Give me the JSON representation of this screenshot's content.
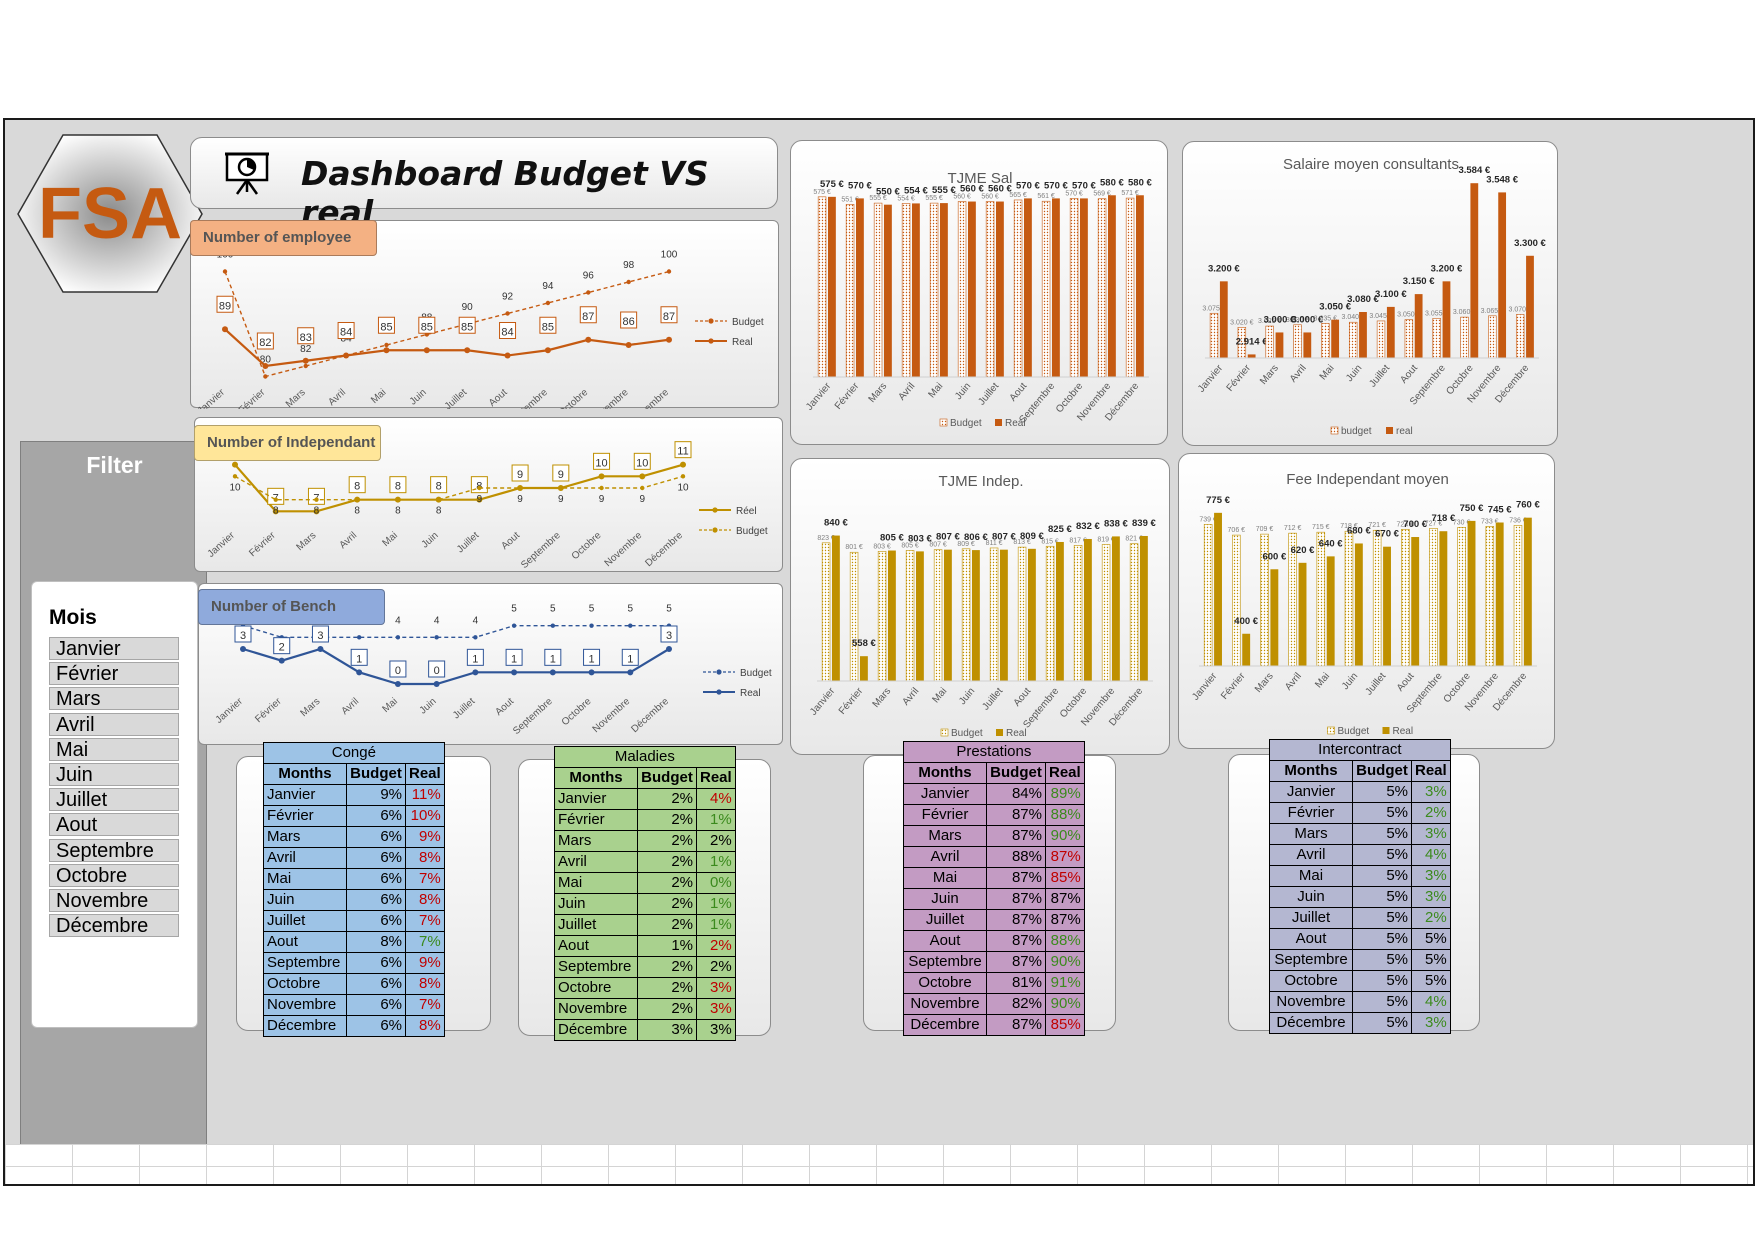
{
  "header": {
    "title": "Dashboard Budget VS real",
    "logo_text": "FSA",
    "title_icon": "presentation-icon"
  },
  "filter": {
    "title": "Filter",
    "slicer_label": "Mois",
    "months": [
      "Janvier",
      "Février",
      "Mars",
      "Avril",
      "Mai",
      "Juin",
      "Juillet",
      "Aout",
      "Septembre",
      "Octobre",
      "Novembre",
      "Décembre"
    ]
  },
  "colors": {
    "employee": "#c55a11",
    "independant": "#bf9000",
    "bench": "#2f5597",
    "tjme_sal": "#c55a11",
    "tjme_indep": "#bf9000"
  },
  "chart_data": [
    {
      "id": "employees",
      "type": "line",
      "title": "Number of employee",
      "categories": [
        "Janvier",
        "Février",
        "Mars",
        "Avril",
        "Mai",
        "Juin",
        "Juillet",
        "Aout",
        "Septembre",
        "Octobre",
        "Novembre",
        "Décembre"
      ],
      "series": [
        {
          "name": "Budget",
          "values": [
            100,
            80,
            82,
            84,
            86,
            88,
            90,
            92,
            94,
            96,
            98,
            100
          ],
          "style": "dashed"
        },
        {
          "name": "Real",
          "values": [
            89,
            82,
            83,
            84,
            85,
            85,
            85,
            84,
            85,
            87,
            86,
            87
          ],
          "style": "solid"
        }
      ],
      "legend": "right"
    },
    {
      "id": "independants",
      "type": "line",
      "title": "Number of Independant",
      "categories": [
        "Janvier",
        "Février",
        "Mars",
        "Avril",
        "Mai",
        "Juin",
        "Juillet",
        "Aout",
        "Septembre",
        "Octobre",
        "Novembre",
        "Décembre"
      ],
      "series": [
        {
          "name": "Réel",
          "values": [
            11,
            7,
            7,
            8,
            8,
            8,
            8,
            9,
            9,
            10,
            10,
            11
          ],
          "style": "solid"
        },
        {
          "name": "Budget",
          "values": [
            10,
            8,
            8,
            8,
            8,
            8,
            9,
            9,
            9,
            9,
            9,
            10
          ],
          "style": "dashed"
        }
      ],
      "legend": "right"
    },
    {
      "id": "bench",
      "type": "line",
      "title": "Number of Bench",
      "categories": [
        "Janvier",
        "Février",
        "Mars",
        "Avril",
        "Mai",
        "Juin",
        "Juillet",
        "Aout",
        "Septembre",
        "Octobre",
        "Novembre",
        "Décembre"
      ],
      "series": [
        {
          "name": "Budget",
          "values": [
            5,
            4,
            4,
            4,
            4,
            4,
            4,
            5,
            5,
            5,
            5,
            5
          ],
          "style": "dashed"
        },
        {
          "name": "Real",
          "values": [
            3,
            2,
            3,
            1,
            0,
            0,
            1,
            1,
            1,
            1,
            1,
            3
          ],
          "style": "solid"
        }
      ],
      "legend": "right"
    },
    {
      "id": "tjme_sal",
      "type": "bar",
      "title": "TJME Sal",
      "categories": [
        "Janvier",
        "Février",
        "Mars",
        "Avril",
        "Mai",
        "Juin",
        "Juillet",
        "Aout",
        "Septembre",
        "Octobre",
        "Novembre",
        "Décembre"
      ],
      "series": [
        {
          "name": "Budget",
          "values": [
            575,
            551,
            555,
            554,
            555,
            560,
            560,
            565,
            561,
            570,
            569,
            571
          ],
          "labels": [
            "575 €",
            "551 €",
            "555 €",
            "554 €",
            "555 €",
            "560 €",
            "560 €",
            "565 €",
            "561 €",
            "570 €",
            "569 €",
            "571 €"
          ]
        },
        {
          "name": "Real",
          "values": [
            575,
            570,
            550,
            554,
            555,
            560,
            560,
            570,
            570,
            570,
            580,
            580
          ],
          "labels": [
            "575 €",
            "570 €",
            "550 €",
            "554 €",
            "555 €",
            "560 €",
            "560 €",
            "570 €",
            "570 €",
            "570 €",
            "580 €",
            "580 €"
          ]
        }
      ],
      "legend": "bottom"
    },
    {
      "id": "salaire",
      "type": "bar",
      "title": "Salaire moyen consultants",
      "categories": [
        "Janvier",
        "Février",
        "Mars",
        "Avril",
        "Mai",
        "Juin",
        "Juillet",
        "Aout",
        "Septembre",
        "Octobre",
        "Novembre",
        "Décembre"
      ],
      "series": [
        {
          "name": "budget",
          "values": [
            3075,
            3020,
            3025,
            3030,
            3035,
            3040,
            3045,
            3050,
            3055,
            3060,
            3065,
            3070
          ],
          "labels": [
            "3.075 €",
            "3.020 €",
            "3.025 €",
            "3.030 €",
            "3.035 €",
            "3.040 €",
            "3.045 €",
            "3.050 €",
            "3.055 €",
            "3.060 €",
            "3.065 €",
            "3.070 €"
          ]
        },
        {
          "name": "real",
          "values": [
            3200,
            2914,
            3000,
            3000,
            3050,
            3080,
            3100,
            3150,
            3200,
            3584,
            3548,
            3300
          ],
          "labels": [
            "3.200 €",
            "2.914 €",
            "3.000 €",
            "3.000 €",
            "3.050 €",
            "3.080 €",
            "3.100 €",
            "3.150 €",
            "3.200 €",
            "3.584 €",
            "3.548 €",
            "3.300 €"
          ]
        }
      ],
      "legend": "bottom"
    },
    {
      "id": "tjme_indep",
      "type": "bar",
      "title": "TJME Indep.",
      "categories": [
        "Janvier",
        "Février",
        "Mars",
        "Avril",
        "Mai",
        "Juin",
        "Juillet",
        "Aout",
        "Septembre",
        "Octobre",
        "Novembre",
        "Décembre"
      ],
      "series": [
        {
          "name": "Budget",
          "values": [
            823,
            801,
            803,
            805,
            807,
            809,
            811,
            813,
            815,
            817,
            819,
            821
          ],
          "labels": [
            "823 €",
            "801 €",
            "803 €",
            "805 €",
            "807 €",
            "809 €",
            "811 €",
            "813 €",
            "815 €",
            "817 €",
            "819 €",
            "821 €"
          ]
        },
        {
          "name": "Real",
          "values": [
            840,
            558,
            805,
            803,
            807,
            806,
            807,
            809,
            825,
            832,
            838,
            839
          ],
          "labels": [
            "840 €",
            "558 €",
            "805 €",
            "803 €",
            "807 €",
            "806 €",
            "807 €",
            "809 €",
            "825 €",
            "832 €",
            "838 €",
            "839 €"
          ]
        }
      ],
      "legend": "bottom"
    },
    {
      "id": "fee",
      "type": "bar",
      "title": "Fee Independant moyen",
      "categories": [
        "Janvier",
        "Février",
        "Mars",
        "Avril",
        "Mai",
        "Juin",
        "Juillet",
        "Aout",
        "Septembre",
        "Octobre",
        "Novembre",
        "Décembre"
      ],
      "series": [
        {
          "name": "Budget",
          "values": [
            739,
            706,
            709,
            712,
            715,
            718,
            721,
            724,
            727,
            730,
            733,
            736
          ],
          "labels": [
            "739 €",
            "706 €",
            "709 €",
            "712 €",
            "715 €",
            "718 €",
            "721 €",
            "724 €",
            "727 €",
            "730 €",
            "733 €",
            "736 €"
          ]
        },
        {
          "name": "Real",
          "values": [
            775,
            400,
            600,
            620,
            640,
            680,
            670,
            700,
            718,
            750,
            745,
            760
          ],
          "labels": [
            "775 €",
            "400 €",
            "600 €",
            "620 €",
            "640 €",
            "680 €",
            "670 €",
            "700 €",
            "718 €",
            "750 €",
            "745 €",
            "760 €"
          ]
        }
      ],
      "legend": "bottom"
    }
  ],
  "tables": [
    {
      "id": "conge",
      "caption": "Congé",
      "headers": [
        "Months",
        "Budget",
        "Real"
      ],
      "color": "#9dc3e6",
      "rows": [
        [
          "Janvier",
          "9%",
          "11%",
          "red"
        ],
        [
          "Février",
          "6%",
          "10%",
          "red"
        ],
        [
          "Mars",
          "6%",
          "9%",
          "red"
        ],
        [
          "Avril",
          "6%",
          "8%",
          "red"
        ],
        [
          "Mai",
          "6%",
          "7%",
          "red"
        ],
        [
          "Juin",
          "6%",
          "8%",
          "red"
        ],
        [
          "Juillet",
          "6%",
          "7%",
          "red"
        ],
        [
          "Aout",
          "8%",
          "7%",
          "green"
        ],
        [
          "Septembre",
          "6%",
          "9%",
          "red"
        ],
        [
          "Octobre",
          "6%",
          "8%",
          "red"
        ],
        [
          "Novembre",
          "6%",
          "7%",
          "red"
        ],
        [
          "Décembre",
          "6%",
          "8%",
          "red"
        ]
      ]
    },
    {
      "id": "maladies",
      "caption": "Maladies",
      "headers": [
        "Months",
        "Budget",
        "Real"
      ],
      "color": "#a9d18e",
      "rows": [
        [
          "Janvier",
          "2%",
          "4%",
          "red"
        ],
        [
          "Février",
          "2%",
          "1%",
          "green"
        ],
        [
          "Mars",
          "2%",
          "2%",
          "black"
        ],
        [
          "Avril",
          "2%",
          "1%",
          "green"
        ],
        [
          "Mai",
          "2%",
          "0%",
          "green"
        ],
        [
          "Juin",
          "2%",
          "1%",
          "green"
        ],
        [
          "Juillet",
          "2%",
          "1%",
          "green"
        ],
        [
          "Aout",
          "1%",
          "2%",
          "red"
        ],
        [
          "Septembre",
          "2%",
          "2%",
          "black"
        ],
        [
          "Octobre",
          "2%",
          "3%",
          "red"
        ],
        [
          "Novembre",
          "2%",
          "3%",
          "red"
        ],
        [
          "Décembre",
          "3%",
          "3%",
          "black"
        ]
      ]
    },
    {
      "id": "prestations",
      "caption": "Prestations",
      "headers": [
        "Months",
        "Budget",
        "Real"
      ],
      "color": "#c39bc3",
      "rows": [
        [
          "Janvier",
          "84%",
          "89%",
          "green"
        ],
        [
          "Février",
          "87%",
          "88%",
          "green"
        ],
        [
          "Mars",
          "87%",
          "90%",
          "green"
        ],
        [
          "Avril",
          "88%",
          "87%",
          "red"
        ],
        [
          "Mai",
          "87%",
          "85%",
          "red"
        ],
        [
          "Juin",
          "87%",
          "87%",
          "black"
        ],
        [
          "Juillet",
          "87%",
          "87%",
          "black"
        ],
        [
          "Aout",
          "87%",
          "88%",
          "green"
        ],
        [
          "Septembre",
          "87%",
          "90%",
          "green"
        ],
        [
          "Octobre",
          "81%",
          "91%",
          "green"
        ],
        [
          "Novembre",
          "82%",
          "90%",
          "green"
        ],
        [
          "Décembre",
          "87%",
          "85%",
          "red"
        ]
      ]
    },
    {
      "id": "intercontract",
      "caption": "Intercontract",
      "headers": [
        "Months",
        "Budget",
        "Real"
      ],
      "color": "#b4b7d1",
      "rows": [
        [
          "Janvier",
          "5%",
          "3%",
          "green"
        ],
        [
          "Février",
          "5%",
          "2%",
          "green"
        ],
        [
          "Mars",
          "5%",
          "3%",
          "green"
        ],
        [
          "Avril",
          "5%",
          "4%",
          "green"
        ],
        [
          "Mai",
          "5%",
          "3%",
          "green"
        ],
        [
          "Juin",
          "5%",
          "3%",
          "green"
        ],
        [
          "Juillet",
          "5%",
          "2%",
          "green"
        ],
        [
          "Aout",
          "5%",
          "5%",
          "black"
        ],
        [
          "Septembre",
          "5%",
          "5%",
          "black"
        ],
        [
          "Octobre",
          "5%",
          "5%",
          "black"
        ],
        [
          "Novembre",
          "5%",
          "4%",
          "green"
        ],
        [
          "Décembre",
          "5%",
          "3%",
          "green"
        ]
      ]
    }
  ]
}
